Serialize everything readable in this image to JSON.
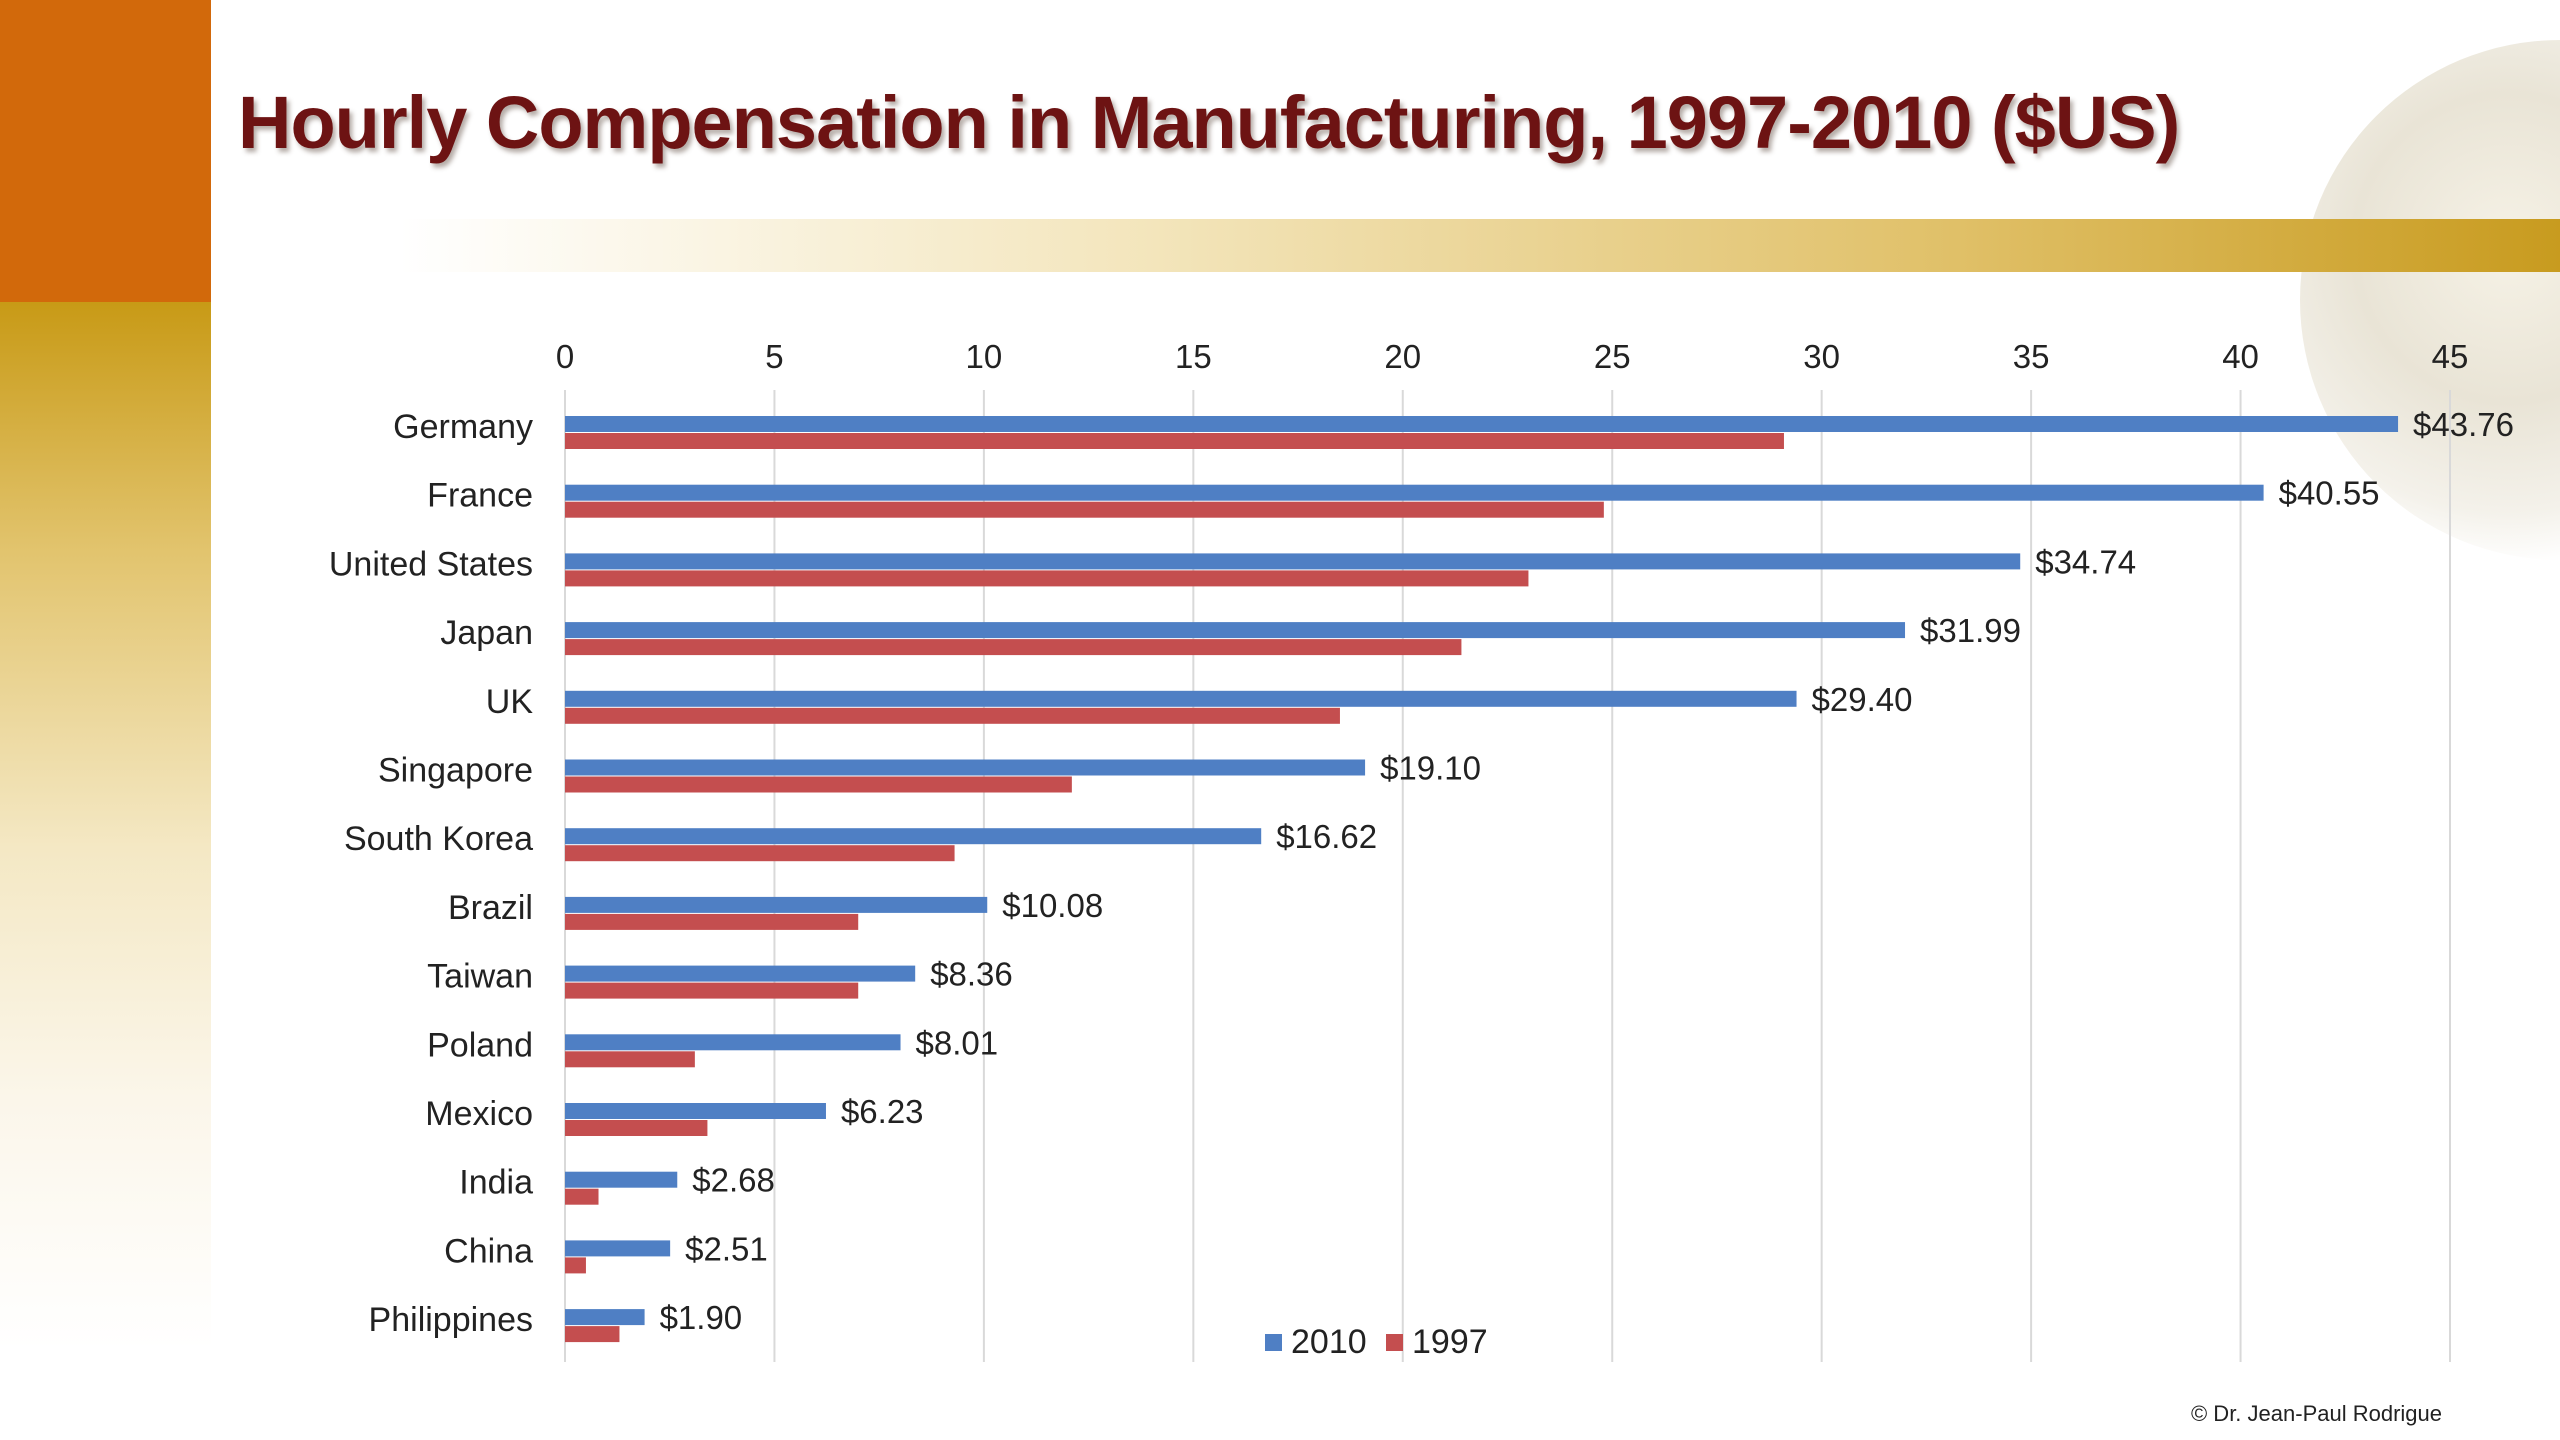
{
  "slide": {
    "title": "Hourly Compensation in Manufacturing, 1997-2010 ($US)",
    "copyright": "© Dr. Jean-Paul Rodrigue"
  },
  "colors": {
    "series_2010": "#4f7fc4",
    "series_1997": "#c44e4f",
    "title": "#6d1313",
    "accent_orange": "#d2690b",
    "accent_gold": "#c89b1f"
  },
  "chart_data": {
    "type": "bar",
    "orientation": "horizontal",
    "x_axis_position": "top",
    "xlim": [
      0,
      45
    ],
    "xticks": [
      0,
      5,
      10,
      15,
      20,
      25,
      30,
      35,
      40,
      45
    ],
    "grid": true,
    "legend_position": "bottom",
    "categories": [
      "Germany",
      "France",
      "United States",
      "Japan",
      "UK",
      "Singapore",
      "South Korea",
      "Brazil",
      "Taiwan",
      "Poland",
      "Mexico",
      "India",
      "China",
      "Philippines"
    ],
    "series": [
      {
        "name": "2010",
        "color": "#4f7fc4",
        "values": [
          43.76,
          40.55,
          34.74,
          31.99,
          29.4,
          19.1,
          16.62,
          10.08,
          8.36,
          8.01,
          6.23,
          2.68,
          2.51,
          1.9
        ],
        "labels": [
          "$43.76",
          "$40.55",
          "$34.74",
          "$31.99",
          "$29.40",
          "$19.10",
          "$16.62",
          "$10.08",
          "$8.36",
          "$8.01",
          "$6.23",
          "$2.68",
          "$2.51",
          "$1.90"
        ]
      },
      {
        "name": "1997",
        "color": "#c44e4f",
        "values": [
          29.1,
          24.8,
          23.0,
          21.4,
          18.5,
          12.1,
          9.3,
          7.0,
          7.0,
          3.1,
          3.4,
          0.8,
          0.5,
          1.3
        ]
      }
    ]
  }
}
